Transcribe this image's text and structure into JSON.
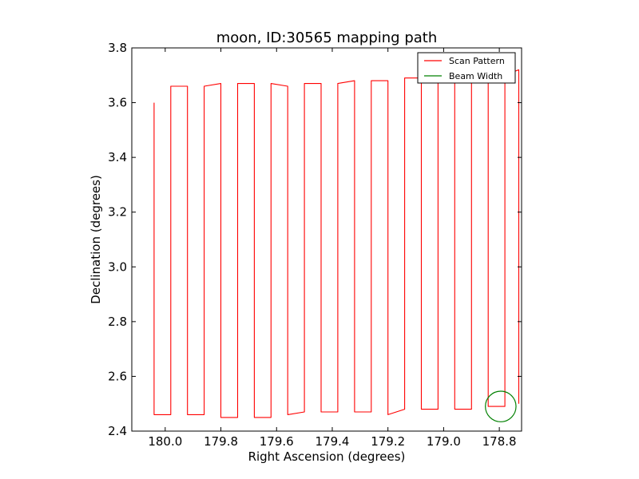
{
  "chart_data": {
    "type": "line",
    "title": "moon, ID:30565 mapping path",
    "xlabel": "Right Ascension (degrees)",
    "ylabel": "Declination (degrees)",
    "xlim": [
      180.12,
      178.72
    ],
    "ylim": [
      2.4,
      3.8
    ],
    "x_inverted": true,
    "grid": false,
    "legend_position": "upper-right",
    "xticks": [
      180.0,
      179.8,
      179.6,
      179.4,
      179.2,
      179.0,
      178.8
    ],
    "xtick_labels": [
      "180.0",
      "179.8",
      "179.6",
      "179.4",
      "179.2",
      "179.0",
      "178.8"
    ],
    "yticks": [
      2.4,
      2.6,
      2.8,
      3.0,
      3.2,
      3.4,
      3.6,
      3.8
    ],
    "ytick_labels": [
      "2.4",
      "2.6",
      "2.8",
      "3.0",
      "3.2",
      "3.4",
      "3.6",
      "3.8"
    ],
    "scan": {
      "name": "Scan Pattern",
      "color": "#ff0000",
      "start_ra": 180.04,
      "start_dec": 3.6,
      "legs": [
        {
          "ra": 180.04,
          "dec_low": 2.46,
          "dec_high": 3.6
        },
        {
          "ra": 179.98,
          "dec_low": 2.46,
          "dec_high": 3.66
        },
        {
          "ra": 179.92,
          "dec_low": 2.46,
          "dec_high": 3.66
        },
        {
          "ra": 179.86,
          "dec_low": 2.46,
          "dec_high": 3.66
        },
        {
          "ra": 179.8,
          "dec_low": 2.45,
          "dec_high": 3.67
        },
        {
          "ra": 179.74,
          "dec_low": 2.45,
          "dec_high": 3.67
        },
        {
          "ra": 179.68,
          "dec_low": 2.45,
          "dec_high": 3.67
        },
        {
          "ra": 179.62,
          "dec_low": 2.45,
          "dec_high": 3.67
        },
        {
          "ra": 179.56,
          "dec_low": 2.46,
          "dec_high": 3.66
        },
        {
          "ra": 179.5,
          "dec_low": 2.47,
          "dec_high": 3.67
        },
        {
          "ra": 179.44,
          "dec_low": 2.47,
          "dec_high": 3.67
        },
        {
          "ra": 179.38,
          "dec_low": 2.47,
          "dec_high": 3.67
        },
        {
          "ra": 179.32,
          "dec_low": 2.47,
          "dec_high": 3.68
        },
        {
          "ra": 179.26,
          "dec_low": 2.47,
          "dec_high": 3.68
        },
        {
          "ra": 179.2,
          "dec_low": 2.46,
          "dec_high": 3.68
        },
        {
          "ra": 179.14,
          "dec_low": 2.48,
          "dec_high": 3.69
        },
        {
          "ra": 179.08,
          "dec_low": 2.48,
          "dec_high": 3.69
        },
        {
          "ra": 179.02,
          "dec_low": 2.48,
          "dec_high": 3.69
        },
        {
          "ra": 178.96,
          "dec_low": 2.48,
          "dec_high": 3.69
        },
        {
          "ra": 178.9,
          "dec_low": 2.48,
          "dec_high": 3.69
        },
        {
          "ra": 178.84,
          "dec_low": 2.49,
          "dec_high": 3.69
        },
        {
          "ra": 178.78,
          "dec_low": 2.49,
          "dec_high": 3.7
        },
        {
          "ra": 178.73,
          "dec_low": 2.5,
          "dec_high": 3.72
        }
      ]
    },
    "beam": {
      "name": "Beam Width",
      "color": "#008000",
      "center_ra": 178.795,
      "center_dec": 2.49,
      "radius_deg": 0.055
    }
  }
}
